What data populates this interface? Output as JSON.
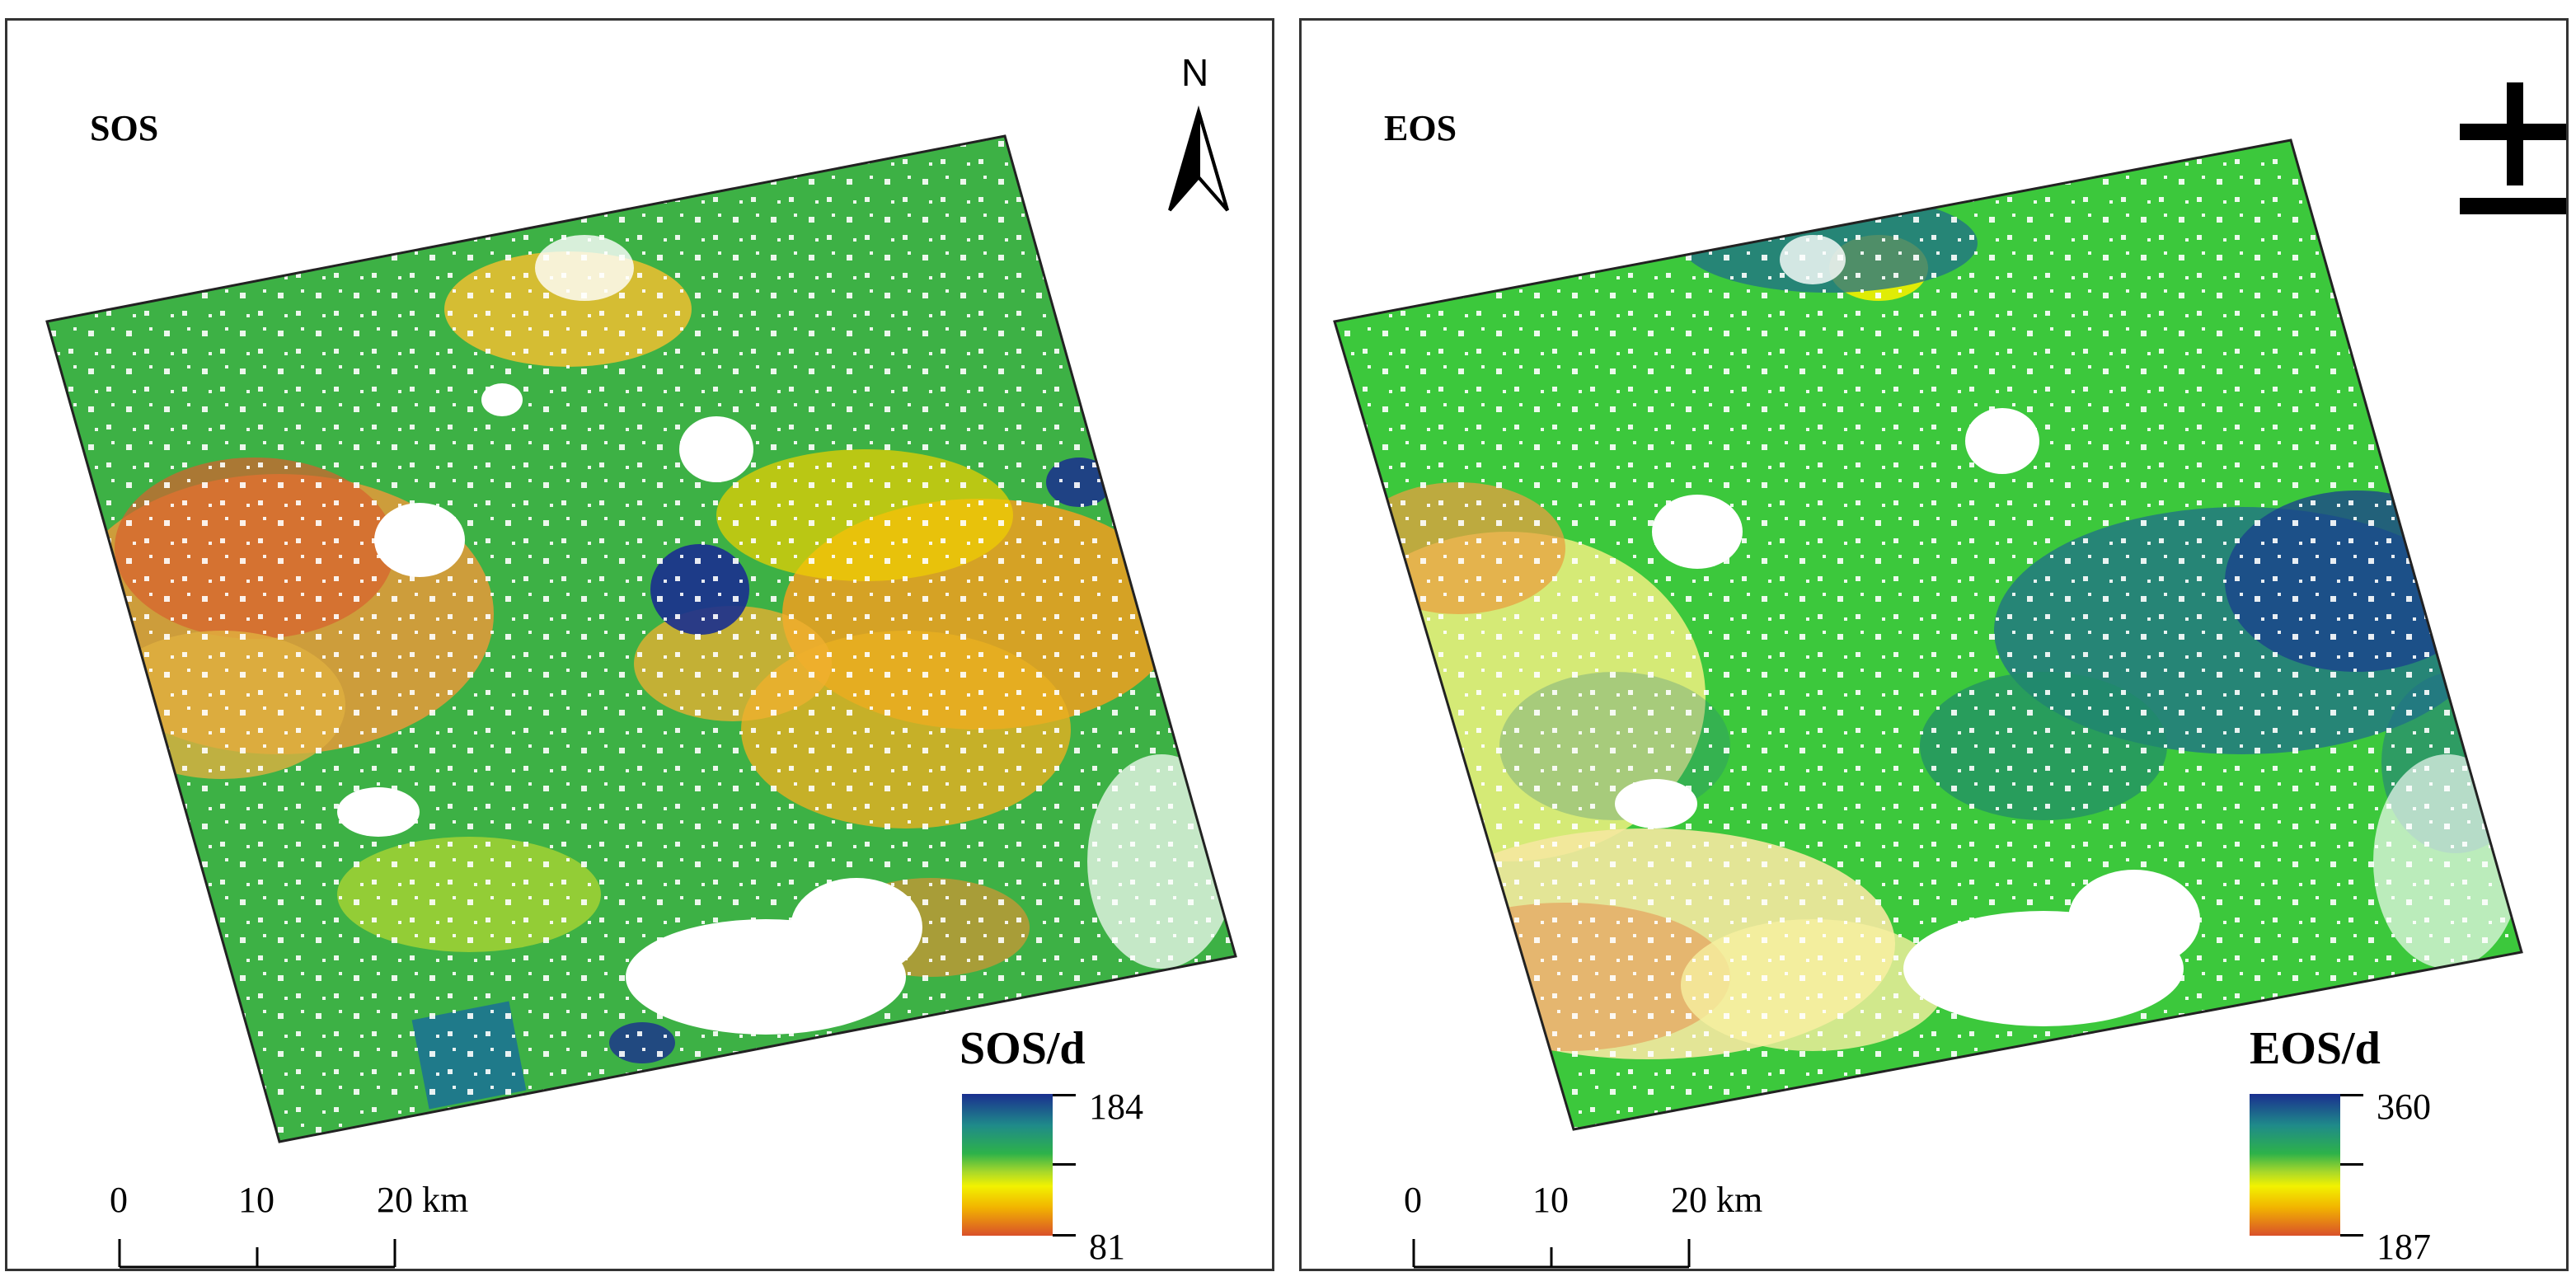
{
  "panels": {
    "sos": {
      "title": "SOS",
      "legend_title": "SOS/d",
      "legend_max": "184",
      "legend_min": "81",
      "north_letter": "N"
    },
    "eos": {
      "title": "EOS",
      "legend_title": "EOS/d",
      "legend_max": "360",
      "legend_min": "187"
    }
  },
  "scale_bar": {
    "label_0": "0",
    "label_10": "10",
    "label_20": "20 km"
  },
  "colors": {
    "ramp": [
      "#1a2f8f",
      "#1f8a8a",
      "#2db24a",
      "#a8d82a",
      "#f2f200",
      "#f2b400",
      "#d9502a"
    ],
    "frame": "#333333",
    "nodata": "#ffffff"
  }
}
